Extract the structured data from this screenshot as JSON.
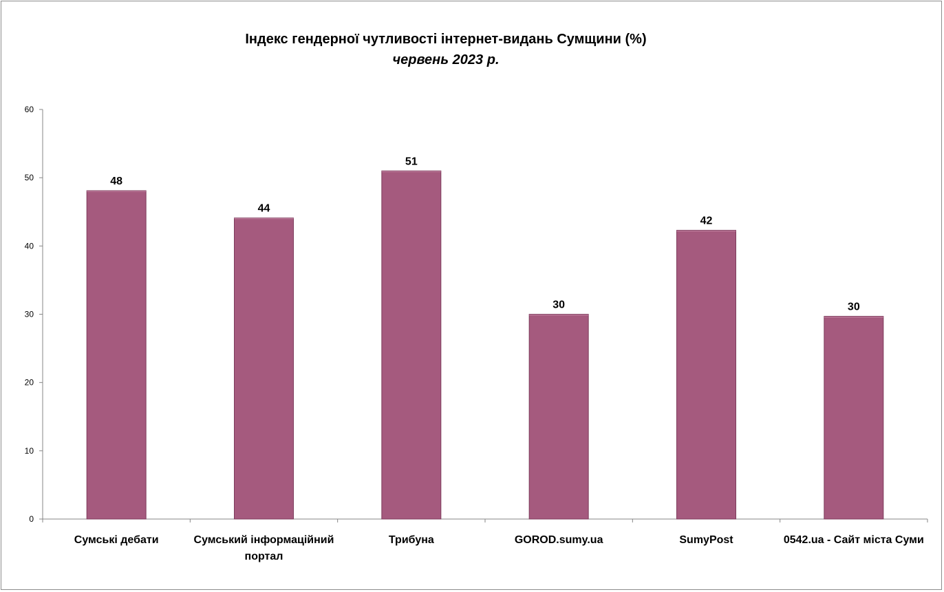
{
  "chart_data": {
    "type": "bar",
    "title": "Індекс гендерної чутливості інтернет-видань Сумщини (%)",
    "subtitle": "червень 2023 р.",
    "xlabel": "",
    "ylabel": "",
    "ylim": [
      0,
      60
    ],
    "yticks": [
      "0",
      "10",
      "20",
      "30",
      "40",
      "50",
      "60"
    ],
    "grid": false,
    "legend": "none",
    "bar_color": "#a55a7e",
    "bar_edge_color": "#7d3b5c",
    "categories": [
      [
        "Сумські дебати"
      ],
      [
        "Сумський інформаційний",
        "портал"
      ],
      [
        "Трибуна"
      ],
      [
        "GOROD.sumy.ua"
      ],
      [
        "SumyPost"
      ],
      [
        "0542.ua - Сайт міста Суми"
      ]
    ],
    "values": [
      48.1,
      44.1,
      51.0,
      30.0,
      42.3,
      29.7
    ],
    "data_labels": [
      "48",
      "44",
      "51",
      "30",
      "42",
      "30"
    ]
  }
}
